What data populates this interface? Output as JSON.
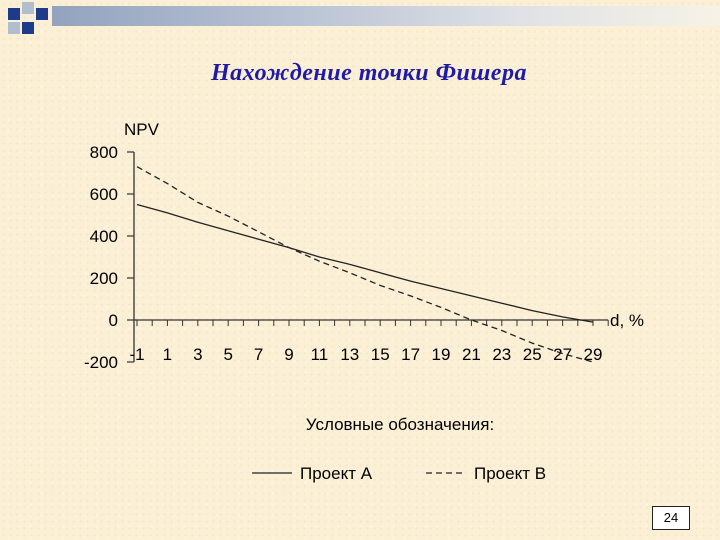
{
  "slide": {
    "title": "Нахождение точки Фишера",
    "page_number": "24",
    "colors": {
      "title": "#1f1aa8",
      "background": "#fbf0d6",
      "decor_blue": "#1e3a8a",
      "decor_gray": "#9aa6bc"
    }
  },
  "chart_data": {
    "type": "line",
    "title": "",
    "xlabel": "d, %",
    "ylabel": "NPV",
    "xlim": [
      -1,
      30
    ],
    "ylim": [
      -200,
      800
    ],
    "y_ticks": [
      -200,
      0,
      200,
      400,
      600,
      800
    ],
    "x_tick_labels": [
      "-1",
      "1",
      "3",
      "5",
      "7",
      "9",
      "11",
      "13",
      "15",
      "17",
      "19",
      "21",
      "23",
      "25",
      "27",
      "29"
    ],
    "grid": false,
    "legend_title": "Условные обозначения:",
    "legend_position": "bottom",
    "series": [
      {
        "name": "Проект А",
        "dash": "solid",
        "x": [
          -1,
          1,
          3,
          5,
          7,
          9,
          11,
          13,
          15,
          17,
          19,
          21,
          23,
          25,
          27,
          29
        ],
        "values": [
          550,
          510,
          465,
          425,
          385,
          345,
          300,
          265,
          225,
          185,
          150,
          115,
          80,
          45,
          15,
          -10
        ]
      },
      {
        "name": "Проект В",
        "dash": "dashed",
        "x": [
          -1,
          1,
          3,
          5,
          7,
          9,
          11,
          13,
          15,
          17,
          19,
          21,
          23,
          25,
          27,
          29
        ],
        "values": [
          730,
          650,
          560,
          495,
          420,
          345,
          280,
          225,
          165,
          115,
          60,
          0,
          -50,
          -110,
          -160,
          -200
        ]
      }
    ]
  }
}
